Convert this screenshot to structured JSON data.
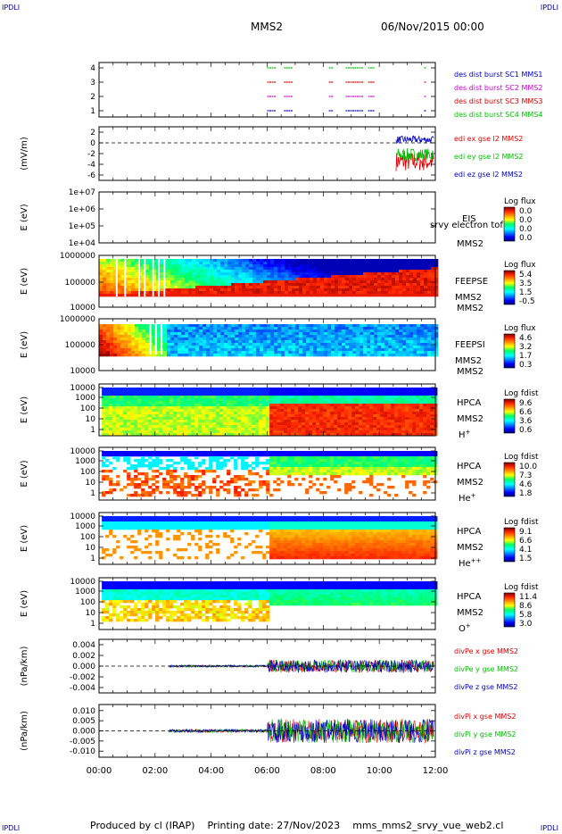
{
  "corner_label": "IPDLI",
  "header": {
    "spacecraft": "MMS2",
    "datetime": "06/Nov/2015 00:00"
  },
  "footer": {
    "produced": "Produced by cl (IRAP)",
    "printing": "Printing date: 27/Nov/2023",
    "file": "mms_mms2_srvy_vue_web2.cl"
  },
  "x_ticks": [
    "00:00",
    "02:00",
    "04:00",
    "06:00",
    "08:00",
    "10:00",
    "12:00"
  ],
  "colors": {
    "red": "#e00000",
    "green": "#00c000",
    "blue": "#0000c8",
    "magenta": "#d000d0"
  },
  "chart_data": [
    {
      "type": "scatter",
      "panel": "burst",
      "yticks": [
        "4",
        "3",
        "2",
        "1"
      ],
      "series": [
        {
          "name": "des dist burst SC1 MMS1",
          "color": "#0000c8"
        },
        {
          "name": "des dist burst SC2 MMS2",
          "color": "#d000d0"
        },
        {
          "name": "des dist burst SC3 MMS3",
          "color": "#e00000"
        },
        {
          "name": "des dist burst SC4 MMS4",
          "color": "#00c000"
        }
      ]
    },
    {
      "type": "line",
      "panel": "edi",
      "ylabel": "(mV/m)",
      "yticks": [
        "2",
        "0",
        "-2",
        "-4",
        "-6"
      ],
      "ylim": [
        -7,
        3
      ],
      "series": [
        {
          "name": "edi ex gse l2 MMS2",
          "color": "#e00000"
        },
        {
          "name": "edi ey gse l2 MMS2",
          "color": "#00c000"
        },
        {
          "name": "edi ez gse l2 MMS2",
          "color": "#0000c8"
        }
      ]
    },
    {
      "type": "heatmap",
      "panel": "eis",
      "ylabel": "E (eV)",
      "yticks": [
        "1e+07",
        "1e+06",
        "1e+05",
        "1e+04"
      ],
      "instrument": "EIS",
      "sc": "MMS2",
      "note": "srvy electron tof",
      "colorbar": {
        "title": "Log flux",
        "ticks": [
          "0.0",
          "0.0",
          "0.0",
          "0.0"
        ]
      }
    },
    {
      "type": "heatmap",
      "panel": "feepse",
      "ylabel": "E (eV)",
      "yticks": [
        "1000000",
        "100000",
        "10000"
      ],
      "instrument": "FEEPSE",
      "sc": "MMS2",
      "colorbar": {
        "title": "Log flux",
        "ticks": [
          "5.4",
          "3.5",
          "1.5",
          "-0.5"
        ]
      }
    },
    {
      "type": "heatmap",
      "panel": "feepsi",
      "ylabel": "E (eV)",
      "yticks": [
        "1000000",
        "100000",
        "10000"
      ],
      "instrument": "FEEPSI",
      "sc": "MMS2",
      "colorbar": {
        "title": "Log flux",
        "ticks": [
          "4.6",
          "3.2",
          "1.7",
          "0.3"
        ]
      }
    },
    {
      "type": "heatmap",
      "panel": "hpca_h",
      "ylabel": "E (eV)",
      "yticks": [
        "10000",
        "1000",
        "100",
        "10",
        "1"
      ],
      "instrument": "HPCA",
      "sc": "MMS2",
      "species": "H",
      "charge": "+",
      "colorbar": {
        "title": "Log fdist",
        "ticks": [
          "9.6",
          "6.6",
          "3.6",
          "0.6"
        ]
      }
    },
    {
      "type": "heatmap",
      "panel": "hpca_he",
      "ylabel": "E (eV)",
      "yticks": [
        "10000",
        "1000",
        "100",
        "10",
        "1"
      ],
      "instrument": "HPCA",
      "sc": "MMS2",
      "species": "He",
      "charge": "+",
      "colorbar": {
        "title": "Log fdist",
        "ticks": [
          "10.0",
          "7.3",
          "4.6",
          "1.8"
        ]
      }
    },
    {
      "type": "heatmap",
      "panel": "hpca_hepp",
      "ylabel": "E (eV)",
      "yticks": [
        "10000",
        "1000",
        "100",
        "10",
        "1"
      ],
      "instrument": "HPCA",
      "sc": "MMS2",
      "species": "He",
      "charge": "++",
      "colorbar": {
        "title": "Log fdist",
        "ticks": [
          "9.1",
          "6.6",
          "4.1",
          "1.5"
        ]
      }
    },
    {
      "type": "heatmap",
      "panel": "hpca_o",
      "ylabel": "E (eV)",
      "yticks": [
        "10000",
        "1000",
        "100",
        "10",
        "1"
      ],
      "instrument": "HPCA",
      "sc": "MMS2",
      "species": "O",
      "charge": "+",
      "colorbar": {
        "title": "Log fdist",
        "ticks": [
          "11.4",
          "8.6",
          "5.8",
          "3.0"
        ]
      }
    },
    {
      "type": "line",
      "panel": "divpe",
      "ylabel": "(nPa/km)",
      "yticks": [
        "0.004",
        "0.002",
        "0.000",
        "-0.002",
        "-0.004"
      ],
      "ylim": [
        -0.005,
        0.005
      ],
      "series": [
        {
          "name": "divPe x gse MMS2",
          "color": "#e00000"
        },
        {
          "name": "divPe y gse MMS2",
          "color": "#00c000"
        },
        {
          "name": "divPe z gse MMS2",
          "color": "#0000c8"
        }
      ]
    },
    {
      "type": "line",
      "panel": "divpi",
      "ylabel": "(nPa/km)",
      "yticks": [
        "0.010",
        "0.005",
        "0.000",
        "-0.005",
        "-0.010"
      ],
      "ylim": [
        -0.013,
        0.013
      ],
      "series": [
        {
          "name": "divPi x gse MMS2",
          "color": "#e00000"
        },
        {
          "name": "divPi y gse MMS2",
          "color": "#00c000"
        },
        {
          "name": "divPi z gse MMS2",
          "color": "#0000c8"
        }
      ]
    }
  ]
}
